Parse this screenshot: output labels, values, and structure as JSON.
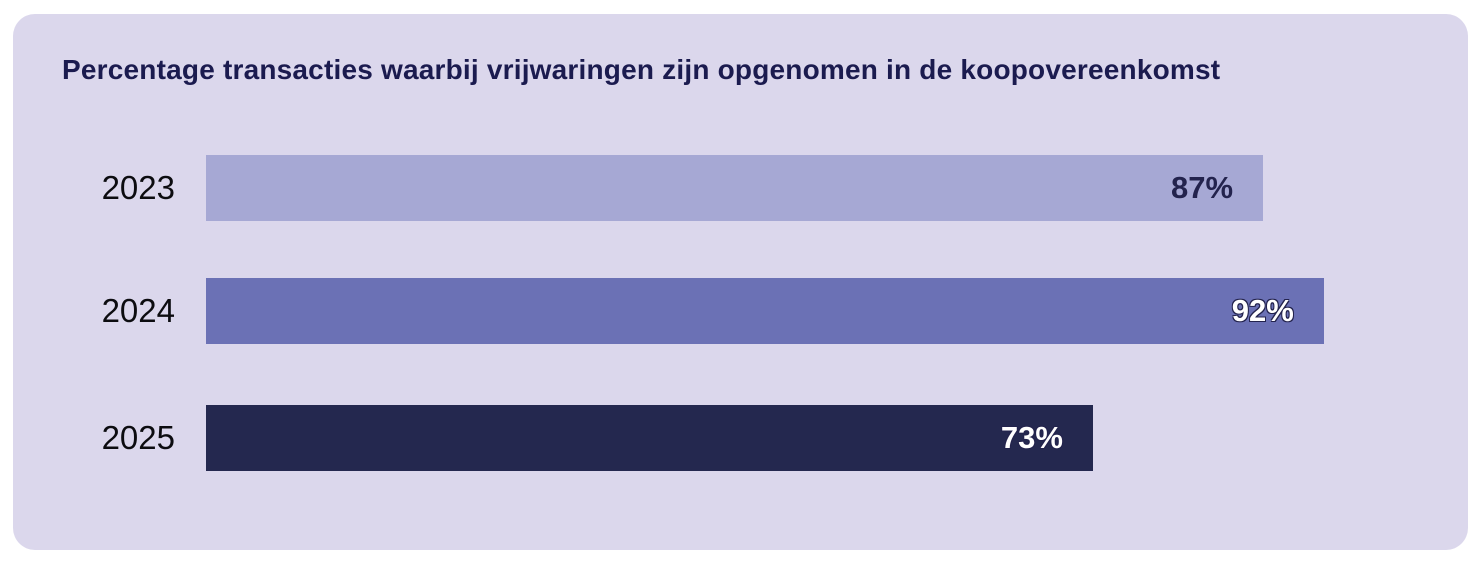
{
  "title": "Percentage transacties waarbij vrijwaringen zijn opgenomen in de koopovereenkomst",
  "colors": {
    "page_background": "#ffffff",
    "card_background": "#dbd7ec",
    "title_text": "#1b1b4f",
    "year_label_text": "#0c0c10"
  },
  "chart_data": {
    "type": "bar",
    "orientation": "horizontal",
    "title": "Percentage transacties waarbij vrijwaringen zijn opgenomen in de koopovereenkomst",
    "categories": [
      "2023",
      "2024",
      "2025"
    ],
    "values": [
      87,
      92,
      73
    ],
    "value_labels": [
      "87%",
      "92%",
      "73%"
    ],
    "xlim": [
      0,
      100
    ],
    "grid": false,
    "legend": "none",
    "bar_colors": [
      "#a6a8d4",
      "#6b71b5",
      "#24284f"
    ],
    "value_label_colors": [
      "#23234d",
      "#ffffff",
      "#ffffff"
    ],
    "value_label_outlined": [
      false,
      true,
      true
    ]
  }
}
